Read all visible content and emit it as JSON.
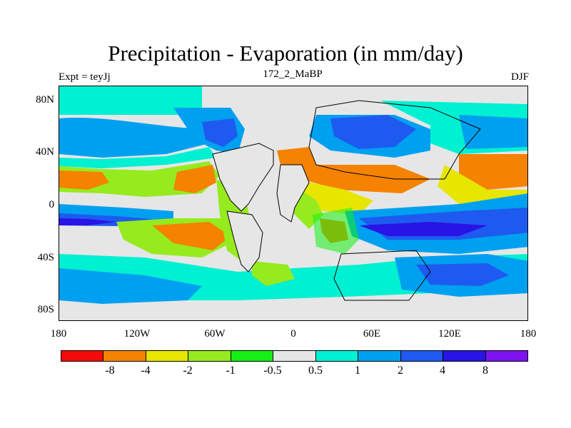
{
  "title": "Precipitation - Evaporation (in mm/day)",
  "subtitle_left": "Expt = teyJj",
  "subtitle_center": "172_2_MaBP",
  "subtitle_right": "DJF",
  "lat_labels": [
    "80N",
    "40N",
    "0",
    "40S",
    "80S"
  ],
  "lon_labels": [
    "180",
    "120W",
    "60W",
    "0",
    "60E",
    "120E",
    "180"
  ],
  "colorbar_labels": [
    "-8",
    "-4",
    "-2",
    "-1",
    "-0.5",
    "0.5",
    "1",
    "2",
    "4",
    "8"
  ],
  "colors": {
    "palette": [
      "#f50a0a",
      "#f58200",
      "#e6e600",
      "#96eb1e",
      "#14f014",
      "#e6e6e6",
      "#00f0d2",
      "#00a0f0",
      "#1e5af0",
      "#2814e6",
      "#7d14f0"
    ],
    "land_background": "#e6e6e6",
    "coastline": "#000000"
  }
}
